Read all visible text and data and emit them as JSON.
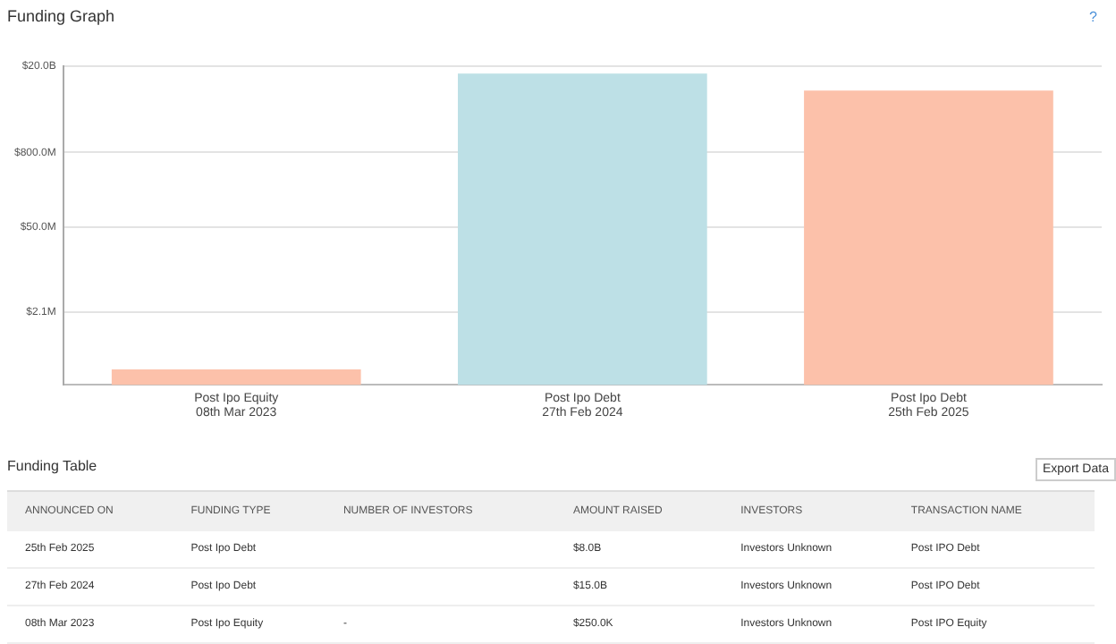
{
  "chart_data": {
    "type": "bar",
    "title": "Funding Graph",
    "categories": [
      "Post Ipo Equity\n08th Mar 2023",
      "Post Ipo Debt\n27th Feb 2024",
      "Post Ipo Debt\n25th Feb 2025"
    ],
    "values": [
      250000,
      15000000000,
      8000000000
    ],
    "colors": [
      "#fcc1aa",
      "#bde0e6",
      "#fcc1aa"
    ],
    "log": "y",
    "ylim": [
      140000,
      20000000000
    ],
    "yticks": [
      {
        "value": 2100000,
        "label": "$2.1M"
      },
      {
        "value": 50000000,
        "label": "$50.0M"
      },
      {
        "value": 800000000,
        "label": "$800.0M"
      },
      {
        "value": 20000000000,
        "label": "$20.0B"
      }
    ],
    "grid": "y",
    "annotations": [
      "?",
      "Export Data",
      "Funding Table",
      "ANNOUNCED ON",
      "FUNDING TYPE",
      "NUMBER OF INVESTORS",
      "AMOUNT RAISED",
      "INVESTORS",
      "TRANSACTION NAME",
      "25th Feb 2025",
      "Post Ipo Debt",
      null,
      "$8.0B",
      "Investors Unknown",
      "Post IPO Debt",
      "27th Feb 2024",
      "Post Ipo Debt",
      null,
      "$15.0B",
      "Investors Unknown",
      "Post IPO Debt",
      "08th Mar 2023",
      "Post Ipo Equity",
      "-",
      "$250.0K",
      "Investors Unknown",
      "Post IPO Equity"
    ]
  }
}
